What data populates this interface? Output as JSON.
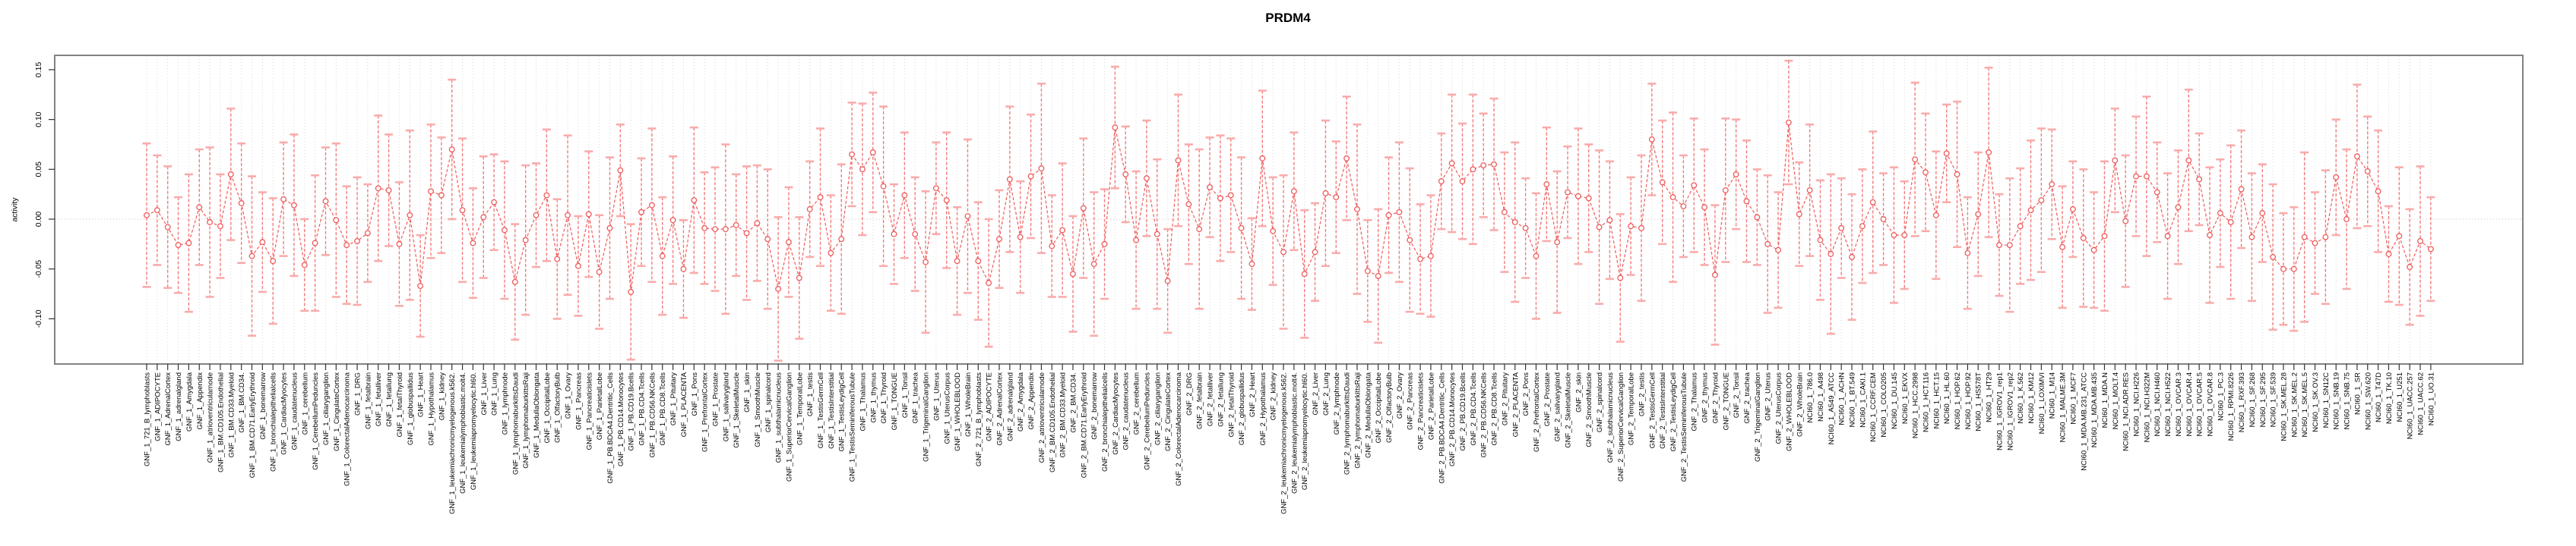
{
  "page": {
    "title": "PRDM4"
  },
  "chart_data": {
    "type": "line",
    "subtype": "point-errorbar",
    "title": "PRDM4",
    "xlabel": "",
    "ylabel": "activity",
    "ylim": [
      -0.145,
      0.164
    ],
    "yticks": [
      0.15,
      0.1,
      0.05,
      0.0,
      -0.05,
      -0.1
    ],
    "ytick_labels": [
      "0.15",
      "0.10",
      "0.05",
      "0.00",
      "-0.05",
      "-0.10"
    ],
    "grid": {
      "vertical_dotted_per_category": true,
      "zero_line_dotted": true,
      "horizontal_gridlines": false
    },
    "legend_position": "none",
    "marker": "open-circle",
    "line_style": "dashed",
    "colors": {
      "series": "#ee5c5c",
      "error_bar": "#f47b7b",
      "error_cap": "#f9abab",
      "grid": "#d9d9d9",
      "zero_line": "#d8bebe",
      "box": "#828282",
      "tick": "#333333",
      "text": "#000000",
      "background": "#ffffff"
    },
    "categories": [
      "GNF_1_721_B_lymphoblasts",
      "GNF_1_ADIPOCYTE",
      "GNF_1_AdrenalCortex",
      "GNF_1_adrenalgland",
      "GNF_1_Amygdala",
      "GNF_1_Appendix",
      "GNF_1_atrioventricularnode",
      "GNF_1_BM.CD105.Endothelial",
      "GNF_1_BM.CD33.Myeloid",
      "GNF_1_BM.CD34.",
      "GNF_1_BM.CD71.EarlyErythroid",
      "GNF_1_bonemarrow",
      "GNF_1_bronchialepithelialcells",
      "GNF_1_CardiacMyocytes",
      "GNF_1_caudatenucleus",
      "GNF_1_cerebellum",
      "GNF_1_CerebellumPeduncles",
      "GNF_1_ciliaryganglion",
      "GNF_1_CingulateCortex",
      "GNF_1_ColorectalAdenocarcinoma",
      "GNF_1_DRG",
      "GNF_1_fetalbrain",
      "GNF_1_fetalliver",
      "GNF_1_fetallung",
      "GNF_1_fetalThyroid",
      "GNF_1_globuspallidus",
      "GNF_1_Heart",
      "GNF_1_Hypothalamus",
      "GNF_1_kidney",
      "GNF_1_leukemiachronicmyelogenous.k562.",
      "GNF_1_leukemialymphoblastic.molt4.",
      "GNF_1_leukemiapromyelocytic.hl60.",
      "GNF_1_Liver",
      "GNF_1_Lung",
      "GNF_1_lymphnode",
      "GNF_1_lymphomaburkittsDaudi",
      "GNF_1_lymphomaburkittsRaji",
      "GNF_1_MedullaOblongata",
      "GNF_1_OccipitalLobe",
      "GNF_1_OlfactoryBulb",
      "GNF_1_Ovary",
      "GNF_1_Pancreas",
      "GNF_1_Pancreaticislets",
      "GNF_1_ParietalLobe",
      "GNF_1_PB.BDCA4.Dentritic_Cells",
      "GNF_1_PB.CD14.Monocytes",
      "GNF_1_PB.CD19.Bcells",
      "GNF_1_PB.CD4.Tcells",
      "GNF_1_PB.CD56.NKCells",
      "GNF_1_PB.CD8.Tcells",
      "GNF_1_Pituitary",
      "GNF_1_PLACENTA",
      "GNF_1_Pons",
      "GNF_1_PrefrontalCortex",
      "GNF_1_Prostate",
      "GNF_1_salivarygland",
      "GNF_1_SkeletalMuscle",
      "GNF_1_skin",
      "GNF_1_SmoothMuscle",
      "GNF_1_spinalcord",
      "GNF_1_subthalamicnucleus",
      "GNF_1_SuperiorCervicalGanglion",
      "GNF_1_TemporalLobe",
      "GNF_1_testis",
      "GNF_1_TestisGermCell",
      "GNF_1_TestisInterstitial",
      "GNF_1_TestisLeydigCell",
      "GNF_1_TestisSeminiferousTubule",
      "GNF_1_Thalamus",
      "GNF_1_thymus",
      "GNF_1_Thyroid",
      "GNF_1_TONGUE",
      "GNF_1_Tonsil",
      "GNF_1_trachea",
      "GNF_1_TrigeminalGanglion",
      "GNF_1_Uterus",
      "GNF_1_UterusCorpus",
      "GNF_1_WHOLEBLOOD",
      "GNF_1_WholeBrain",
      "GNF_2_721_B_lymphoblasts",
      "GNF_2_ADIPOCYTE",
      "GNF_2_AdrenalCortex",
      "GNF_2_adrenalgland",
      "GNF_2_Amygdala",
      "GNF_2_Appendix",
      "GNF_2_atrioventricularnode",
      "GNF_2_BM.CD105.Endothelial",
      "GNF_2_BM.CD33.Myeloid",
      "GNF_2_BM.CD34.",
      "GNF_2_BM.CD71.EarlyErythroid",
      "GNF_2_bonemarrow",
      "GNF_2_bronchialepithelialcells",
      "GNF_2_CardiacMyocytes",
      "GNF_2_caudatenucleus",
      "GNF_2_cerebellum",
      "GNF_2_CerebellumPeduncles",
      "GNF_2_ciliaryganglion",
      "GNF_2_CingulateCortex",
      "GNF_2_ColorectalAdenocarcinoma",
      "GNF_2_DRG",
      "GNF_2_fetalbrain",
      "GNF_2_fetalliver",
      "GNF_2_fetallung",
      "GNF_2_fetalThyroid",
      "GNF_2_globuspallidus",
      "GNF_2_Heart",
      "GNF_2_Hypothalamus",
      "GNF_2_kidney",
      "GNF_2_leukemiachronicmyelogenous.k562.",
      "GNF_2_leukemialymphoblastic.molt4.",
      "GNF_2_leukemiapromyelocytic.hl60.",
      "GNF_2_Liver",
      "GNF_2_Lung",
      "GNF_2_lymphnode",
      "GNF_2_lymphomaburkittsDaudi",
      "GNF_2_lymphomaburkittsRaji",
      "GNF_2_MedullaOblongata",
      "GNF_2_OccipitalLobe",
      "GNF_2_OlfactoryBulb",
      "GNF_2_Ovary",
      "GNF_2_Pancreas",
      "GNF_2_Pancreaticislets",
      "GNF_2_ParietalLobe",
      "GNF_2_PB.BDCA4.Dentritic_Cells",
      "GNF_2_PB.CD14.Monocytes",
      "GNF_2_PB.CD19.Bcells",
      "GNF_2_PB.CD4.Tcells",
      "GNF_2_PB.CD56.NKCells",
      "GNF_2_PB.CD8.Tcells",
      "GNF_2_Pituitary",
      "GNF_2_PLACENTA",
      "GNF_2_Pons",
      "GNF_2_PrefrontalCortex",
      "GNF_2_Prostate",
      "GNF_2_salivarygland",
      "GNF_2_SkeletalMuscle",
      "GNF_2_skin",
      "GNF_2_SmoothMuscle",
      "GNF_2_spinalcord",
      "GNF_2_subthalamicnucleus",
      "GNF_2_SuperiorCervicalGanglion",
      "GNF_2_TemporalLobe",
      "GNF_2_testis",
      "GNF_2_TestisGermCell",
      "GNF_2_TestisInterstitial",
      "GNF_2_TestisLeydigCell",
      "GNF_2_TestisSeminiferousTubule",
      "GNF_2_Thalamus",
      "GNF_2_thymus",
      "GNF_2_Thyroid",
      "GNF_2_TONGUE",
      "GNF_2_Tonsil",
      "GNF_2_trachea",
      "GNF_2_TrigeminalGanglion",
      "GNF_2_Uterus",
      "GNF_2_UterusCorpus",
      "GNF_2_WHOLEBLOOD",
      "GNF_2_WholeBrain",
      "NCI60_1_786.0",
      "NCI60_1_A498",
      "NCI60_1_A549_ATCC",
      "NCI60_1_ACHN",
      "NCI60_1_BT.549",
      "NCI60_1_CAKI.1",
      "NCI60_1_CCRF.CEM",
      "NCI60_1_COLO205",
      "NCI60_1_DU.145",
      "NCI60_1_EKVX",
      "NCI60_1_HCC.2998",
      "NCI60_1_HCT.116",
      "NCI60_1_HCT.15",
      "NCI60_1_HL.60",
      "NCI60_1_HOP.62",
      "NCI60_1_HOP.92",
      "NCI60_1_HS578T",
      "NCI60_1_HT29",
      "NCI60_1_IGROV1_rep1",
      "NCI60_1_IGROV1_rep2",
      "NCI60_1_K.562",
      "NCI60_1_KM12",
      "NCI60_1_LOXIMVI",
      "NCI60_1_M14",
      "NCI60_1_MALME.3M",
      "NCI60_1_MCF7",
      "NCI60_1_MDA.MB.231_ATCC",
      "NCI60_1_MDA.MB.435",
      "NCI60_1_MDA.N",
      "NCI60_1_MOLT.4",
      "NCI60_1_NCI.ADR.RES",
      "NCI60_1_NCI.H226",
      "NCI60_1_NCI.H322M",
      "NCI60_1_NCI.H460",
      "NCI60_1_NCI.H522",
      "NCI60_1_OVCAR.3",
      "NCI60_1_OVCAR.4",
      "NCI60_1_OVCAR.5",
      "NCI60_1_OVCAR.8",
      "NCI60_1_PC.3",
      "NCI60_1_RPMI.8226",
      "NCI60_1_RXF.393",
      "NCI60_1_SF.268",
      "NCI60_1_SF.295",
      "NCI60_1_SF.539",
      "NCI60_1_SK.MEL.28",
      "NCI60_1_SK.MEL.2",
      "NCI60_1_SK.MEL.5",
      "NCI60_1_SK.OV.3",
      "NCI60_1_SN12C",
      "NCI60_1_SNB.19",
      "NCI60_1_SNB.75",
      "NCI60_1_SR",
      "NCI60_1_SW.620",
      "NCI60_1_T47D",
      "NCI60_1_TK.10",
      "NCI60_1_U251",
      "NCI60_1_UACC.257",
      "NCI60_1_UACC.62",
      "NCI60_1_UO.31"
    ],
    "series": [
      {
        "name": "activity",
        "values": [
          0.004,
          0.009,
          -0.008,
          -0.026,
          -0.024,
          0.012,
          -0.003,
          -0.007,
          0.045,
          0.016,
          -0.037,
          -0.023,
          -0.042,
          0.02,
          0.014,
          -0.046,
          -0.024,
          0.018,
          -0.001,
          -0.026,
          -0.022,
          -0.014,
          0.031,
          0.029,
          -0.025,
          0.004,
          -0.067,
          0.028,
          0.024,
          0.07,
          0.009,
          -0.024,
          0.002,
          0.017,
          -0.011,
          -0.063,
          -0.021,
          0.004,
          0.024,
          -0.04,
          0.004,
          -0.047,
          0.005,
          -0.053,
          -0.009,
          0.049,
          -0.073,
          0.007,
          0.014,
          -0.037,
          -0.001,
          -0.05,
          0.019,
          -0.009,
          -0.01,
          -0.01,
          -0.006,
          -0.014,
          -0.004,
          -0.02,
          -0.07,
          -0.023,
          -0.059,
          0.01,
          0.022,
          -0.034,
          -0.02,
          0.065,
          0.05,
          0.067,
          0.033,
          -0.015,
          0.024,
          -0.015,
          -0.043,
          0.031,
          0.019,
          -0.042,
          0.003,
          -0.042,
          -0.064,
          -0.02,
          0.04,
          -0.018,
          0.043,
          0.051,
          -0.027,
          -0.011,
          -0.055,
          0.011,
          -0.045,
          -0.025,
          0.092,
          0.045,
          -0.021,
          0.041,
          -0.015,
          -0.062,
          0.059,
          0.015,
          -0.01,
          0.032,
          0.021,
          0.024,
          -0.009,
          -0.045,
          0.061,
          -0.012,
          -0.033,
          0.028,
          -0.055,
          -0.033,
          0.026,
          0.022,
          0.061,
          0.01,
          -0.052,
          -0.057,
          0.004,
          0.007,
          -0.021,
          -0.04,
          -0.037,
          0.038,
          0.056,
          0.038,
          0.05,
          0.054,
          0.055,
          0.007,
          -0.003,
          -0.009,
          -0.037,
          0.035,
          -0.023,
          0.027,
          0.023,
          0.021,
          -0.008,
          -0.001,
          -0.059,
          -0.007,
          -0.009,
          0.08,
          0.037,
          0.022,
          0.013,
          0.034,
          0.012,
          -0.056,
          0.029,
          0.045,
          0.018,
          0.002,
          -0.025,
          -0.031,
          0.097,
          0.005,
          0.029,
          -0.021,
          -0.035,
          -0.009,
          -0.038,
          -0.007,
          0.017,
          0.0,
          -0.016,
          -0.016,
          0.06,
          0.047,
          0.004,
          0.066,
          0.045,
          -0.034,
          0.005,
          0.067,
          -0.026,
          -0.026,
          -0.007,
          0.009,
          0.019,
          0.035,
          -0.028,
          0.01,
          -0.019,
          -0.031,
          -0.017,
          0.059,
          -0.002,
          0.043,
          0.043,
          0.027,
          -0.017,
          0.012,
          0.059,
          0.04,
          -0.016,
          0.006,
          -0.003,
          0.03,
          -0.018,
          0.006,
          -0.038,
          -0.05,
          -0.05,
          -0.018,
          -0.024,
          -0.018,
          0.042,
          0.0,
          0.063,
          0.048,
          0.028,
          -0.035,
          -0.017,
          -0.048,
          -0.022,
          -0.03
        ]
      },
      {
        "name": "ci_halfwidth",
        "values": [
          0.072,
          0.055,
          0.061,
          0.048,
          0.069,
          0.058,
          0.075,
          0.052,
          0.066,
          0.06,
          0.08,
          0.05,
          0.063,
          0.057,
          0.071,
          0.046,
          0.068,
          0.054,
          0.077,
          0.059,
          0.064,
          0.049,
          0.073,
          0.056,
          0.062,
          0.085,
          0.051,
          0.067,
          0.058,
          0.07,
          0.072,
          0.055,
          0.061,
          0.048,
          0.069,
          0.058,
          0.075,
          0.052,
          0.066,
          0.06,
          0.08,
          0.05,
          0.063,
          0.057,
          0.071,
          0.046,
          0.068,
          0.054,
          0.077,
          0.059,
          0.064,
          0.049,
          0.073,
          0.056,
          0.062,
          0.085,
          0.051,
          0.067,
          0.058,
          0.07,
          0.072,
          0.055,
          0.061,
          0.048,
          0.069,
          0.058,
          0.075,
          0.052,
          0.066,
          0.06,
          0.08,
          0.05,
          0.063,
          0.057,
          0.071,
          0.046,
          0.068,
          0.054,
          0.077,
          0.059,
          0.064,
          0.049,
          0.073,
          0.056,
          0.062,
          0.085,
          0.051,
          0.067,
          0.058,
          0.07,
          0.072,
          0.055,
          0.061,
          0.048,
          0.069,
          0.058,
          0.075,
          0.052,
          0.066,
          0.06,
          0.08,
          0.05,
          0.063,
          0.057,
          0.071,
          0.046,
          0.068,
          0.054,
          0.077,
          0.059,
          0.064,
          0.049,
          0.073,
          0.056,
          0.062,
          0.085,
          0.051,
          0.067,
          0.058,
          0.07,
          0.072,
          0.055,
          0.061,
          0.048,
          0.069,
          0.058,
          0.075,
          0.052,
          0.066,
          0.06,
          0.08,
          0.05,
          0.063,
          0.057,
          0.071,
          0.046,
          0.068,
          0.054,
          0.077,
          0.059,
          0.064,
          0.049,
          0.073,
          0.056,
          0.062,
          0.085,
          0.051,
          0.067,
          0.058,
          0.07,
          0.072,
          0.055,
          0.061,
          0.048,
          0.069,
          0.058,
          0.062,
          0.052,
          0.066,
          0.06,
          0.08,
          0.05,
          0.063,
          0.057,
          0.071,
          0.046,
          0.068,
          0.054,
          0.077,
          0.059,
          0.064,
          0.049,
          0.073,
          0.056,
          0.062,
          0.085,
          0.051,
          0.067,
          0.058,
          0.07,
          0.072,
          0.055,
          0.061,
          0.048,
          0.069,
          0.058,
          0.075,
          0.052,
          0.066,
          0.06,
          0.08,
          0.05,
          0.063,
          0.057,
          0.071,
          0.046,
          0.068,
          0.054,
          0.077,
          0.059,
          0.064,
          0.049,
          0.073,
          0.056,
          0.062,
          0.085,
          0.051,
          0.067,
          0.058,
          0.07,
          0.072,
          0.055,
          0.061,
          0.048,
          0.069,
          0.058,
          0.075,
          0.052
        ]
      }
    ]
  }
}
